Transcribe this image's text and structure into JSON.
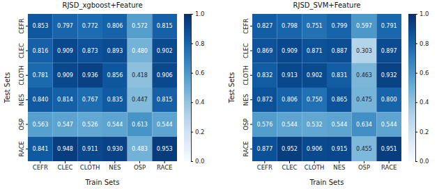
{
  "chart_data": [
    {
      "type": "heatmap",
      "title": "RJSD_xgboost+Feature",
      "x_label": "Train Sets",
      "y_label": "Test Sets",
      "x": [
        "CEFR",
        "CLEC",
        "CLOTH",
        "NES",
        "OSP",
        "RACE"
      ],
      "y": [
        "CEFR",
        "CLEC",
        "CLOTH",
        "NES",
        "OSP",
        "RACE"
      ],
      "color": "Blues",
      "data_labels": true,
      "cells": [
        [
          0.853,
          0.797,
          0.772,
          0.806,
          0.572,
          0.815
        ],
        [
          0.816,
          0.909,
          0.873,
          0.893,
          0.48,
          0.902
        ],
        [
          0.781,
          0.909,
          0.936,
          0.856,
          0.418,
          0.906
        ],
        [
          0.84,
          0.814,
          0.767,
          0.835,
          0.447,
          0.815
        ],
        [
          0.563,
          0.547,
          0.526,
          0.544,
          0.613,
          0.544
        ],
        [
          0.841,
          0.948,
          0.911,
          0.93,
          0.483,
          0.953
        ]
      ],
      "value_labels": [
        [
          "0.853",
          "0.797",
          "0.772",
          "0.806",
          "0.572",
          "0.815"
        ],
        [
          "0.816",
          "0.909",
          "0.873",
          "0.893",
          "0.480",
          "0.902"
        ],
        [
          "0.781",
          "0.909",
          "0.936",
          "0.856",
          "0.418",
          "0.906"
        ],
        [
          "0.840",
          "0.814",
          "0.767",
          "0.835",
          "0.447",
          "0.815"
        ],
        [
          "0.563",
          "0.547",
          "0.526",
          "0.544",
          "0.613",
          "0.544"
        ],
        [
          "0.841",
          "0.948",
          "0.911",
          "0.930",
          "0.483",
          "0.953"
        ]
      ],
      "colorbar": {
        "range": [
          0,
          1
        ],
        "ticks": [
          {
            "value": 0,
            "label": "0.0"
          },
          {
            "value": 0.2,
            "label": "0.2"
          },
          {
            "value": 0.4,
            "label": "0.4"
          },
          {
            "value": 0.6,
            "label": "0.6"
          },
          {
            "value": 0.8,
            "label": "0.8"
          },
          {
            "value": 1,
            "label": "1.0"
          }
        ]
      }
    },
    {
      "type": "heatmap",
      "title": "RJSD_SVM+Feature",
      "x_label": "Train Sets",
      "y_label": "Test Sets",
      "x": [
        "CEFR",
        "CLEC",
        "CLOTH",
        "NES",
        "OSP",
        "RACE"
      ],
      "y": [
        "CEFR",
        "CLEC",
        "CLOTH",
        "NES",
        "OSP",
        "RACE"
      ],
      "color": "Blues",
      "data_labels": true,
      "cells": [
        [
          0.827,
          0.798,
          0.751,
          0.799,
          0.597,
          0.791
        ],
        [
          0.869,
          0.909,
          0.871,
          0.887,
          0.303,
          0.897
        ],
        [
          0.832,
          0.913,
          0.902,
          0.831,
          0.463,
          0.932
        ],
        [
          0.872,
          0.806,
          0.75,
          0.865,
          0.475,
          0.8
        ],
        [
          0.576,
          0.544,
          0.532,
          0.544,
          0.634,
          0.544
        ],
        [
          0.877,
          0.952,
          0.906,
          0.915,
          0.455,
          0.951
        ]
      ],
      "value_labels": [
        [
          "0.827",
          "0.798",
          "0.751",
          "0.799",
          "0.597",
          "0.791"
        ],
        [
          "0.869",
          "0.909",
          "0.871",
          "0.887",
          "0.303",
          "0.897"
        ],
        [
          "0.832",
          "0.913",
          "0.902",
          "0.831",
          "0.463",
          "0.932"
        ],
        [
          "0.872",
          "0.806",
          "0.750",
          "0.865",
          "0.475",
          "0.800"
        ],
        [
          "0.576",
          "0.544",
          "0.532",
          "0.544",
          "0.634",
          "0.544"
        ],
        [
          "0.877",
          "0.952",
          "0.906",
          "0.915",
          "0.455",
          "0.951"
        ]
      ],
      "colorbar": {
        "range": [
          0,
          1
        ],
        "ticks": [
          {
            "value": 0,
            "label": "0.0"
          },
          {
            "value": 0.2,
            "label": "0.2"
          },
          {
            "value": 0.4,
            "label": "0.4"
          },
          {
            "value": 0.6,
            "label": "0.6"
          },
          {
            "value": 0.8,
            "label": "0.8"
          },
          {
            "value": 1,
            "label": "1.0"
          }
        ]
      }
    }
  ]
}
